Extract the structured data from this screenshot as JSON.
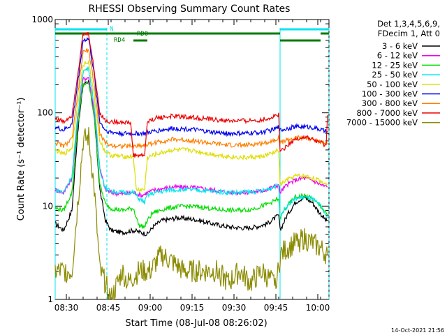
{
  "chart_data": {
    "type": "line",
    "title": "RHESSI Observing Summary Count Rates",
    "xlabel": "Start Time (08-Jul-08 08:26:02)",
    "ylabel": "Count Rate (s⁻¹ detector⁻¹)",
    "yscale": "log",
    "ylim": [
      1,
      1000
    ],
    "xlim_minutes": [
      0,
      98
    ],
    "x_ticks": [
      {
        "minute": 4,
        "label": "08:30"
      },
      {
        "minute": 19,
        "label": "08:45"
      },
      {
        "minute": 34,
        "label": "09:00"
      },
      {
        "minute": 49,
        "label": "09:15"
      },
      {
        "minute": 64,
        "label": "09:30"
      },
      {
        "minute": 79,
        "label": "09:45"
      },
      {
        "minute": 94,
        "label": "10:00"
      }
    ],
    "y_ticks": [
      {
        "value": 1,
        "label": "1"
      },
      {
        "value": 10,
        "label": "10"
      },
      {
        "value": 100,
        "label": "100"
      },
      {
        "value": 1000,
        "label": "1000"
      }
    ],
    "legend_header": [
      "Det 1,3,4,5,6,9,",
      "FDecim 1, Att 0"
    ],
    "legend_position": "right",
    "timestamp": "14-Oct-2021 21:56",
    "flags": [
      {
        "label": "N",
        "color": "#00e5ee",
        "segments": [
          [
            0,
            18.5
          ],
          [
            80.5,
            98
          ]
        ]
      },
      {
        "label": "RD0",
        "color": "#007a00",
        "segments": [
          [
            0,
            80.5
          ],
          [
            95,
            98
          ]
        ]
      },
      {
        "label": "RD4",
        "color": "#007a00",
        "segments": [
          [
            28,
            33
          ],
          [
            80.5,
            95
          ]
        ]
      }
    ],
    "night_boundaries": [
      0,
      18.5,
      80.5,
      98
    ],
    "series": [
      {
        "name": "3 - 6 keV",
        "color": "#000000",
        "points": [
          [
            0,
            6.5
          ],
          [
            3,
            5.5
          ],
          [
            6,
            9
          ],
          [
            8,
            60
          ],
          [
            10,
            200
          ],
          [
            12,
            220
          ],
          [
            14,
            90
          ],
          [
            16,
            15
          ],
          [
            18,
            7
          ],
          [
            20,
            5.5
          ],
          [
            24,
            5.2
          ],
          [
            28,
            5.5
          ],
          [
            31,
            5.2
          ],
          [
            33,
            5
          ],
          [
            35,
            6
          ],
          [
            38,
            7
          ],
          [
            44,
            7.5
          ],
          [
            50,
            7.2
          ],
          [
            56,
            6.5
          ],
          [
            62,
            6
          ],
          [
            68,
            5.8
          ],
          [
            72,
            6
          ],
          [
            76,
            6.5
          ],
          [
            80,
            8
          ],
          [
            80.5,
            5.5
          ],
          [
            83,
            8
          ],
          [
            86,
            11
          ],
          [
            89,
            12.5
          ],
          [
            92,
            11
          ],
          [
            94,
            9
          ],
          [
            97,
            7
          ],
          [
            97.5,
            7
          ]
        ]
      },
      {
        "name": "6 - 12 keV",
        "color": "#ee00ee",
        "points": [
          [
            0,
            15
          ],
          [
            3,
            14
          ],
          [
            6,
            20
          ],
          [
            8,
            80
          ],
          [
            10,
            230
          ],
          [
            12,
            240
          ],
          [
            14,
            100
          ],
          [
            16,
            25
          ],
          [
            18,
            15
          ],
          [
            20,
            14
          ],
          [
            24,
            13.5
          ],
          [
            28,
            14
          ],
          [
            31,
            13
          ],
          [
            33,
            14
          ],
          [
            36,
            15
          ],
          [
            42,
            16
          ],
          [
            48,
            16
          ],
          [
            56,
            15
          ],
          [
            62,
            14
          ],
          [
            68,
            14
          ],
          [
            74,
            14.5
          ],
          [
            78,
            16
          ],
          [
            80,
            17
          ],
          [
            80.5,
            14
          ],
          [
            83,
            17
          ],
          [
            86,
            19
          ],
          [
            89,
            20
          ],
          [
            92,
            19
          ],
          [
            95,
            17
          ],
          [
            97.5,
            16
          ]
        ]
      },
      {
        "name": "12 - 25 keV",
        "color": "#00dd00",
        "points": [
          [
            0,
            9.5
          ],
          [
            3,
            9
          ],
          [
            6,
            14
          ],
          [
            8,
            70
          ],
          [
            10,
            200
          ],
          [
            12,
            210
          ],
          [
            14,
            90
          ],
          [
            16,
            17
          ],
          [
            18,
            10.5
          ],
          [
            20,
            9.5
          ],
          [
            24,
            9
          ],
          [
            28,
            9.5
          ],
          [
            30,
            6.2
          ],
          [
            32,
            6
          ],
          [
            33,
            7
          ],
          [
            35,
            8.5
          ],
          [
            40,
            9.5
          ],
          [
            46,
            10
          ],
          [
            52,
            9.8
          ],
          [
            58,
            9.2
          ],
          [
            64,
            9
          ],
          [
            70,
            9.2
          ],
          [
            76,
            10.5
          ],
          [
            80,
            12
          ],
          [
            80.5,
            7.5
          ],
          [
            83,
            10
          ],
          [
            86,
            12.5
          ],
          [
            89,
            13
          ],
          [
            92,
            12
          ],
          [
            95,
            10
          ],
          [
            97.5,
            8
          ]
        ]
      },
      {
        "name": "25 - 50 keV",
        "color": "#00e5ee",
        "points": [
          [
            0,
            15
          ],
          [
            3,
            14
          ],
          [
            6,
            21
          ],
          [
            8,
            90
          ],
          [
            10,
            280
          ],
          [
            12,
            300
          ],
          [
            14,
            120
          ],
          [
            16,
            25
          ],
          [
            18,
            15.5
          ],
          [
            20,
            14.5
          ],
          [
            24,
            14
          ],
          [
            28,
            14
          ],
          [
            30,
            12
          ],
          [
            32,
            11
          ],
          [
            33,
            13
          ],
          [
            36,
            14
          ],
          [
            42,
            15
          ],
          [
            48,
            15
          ],
          [
            56,
            14.5
          ],
          [
            62,
            14
          ],
          [
            68,
            14
          ],
          [
            74,
            14.5
          ],
          [
            78,
            16
          ],
          [
            80,
            17
          ],
          [
            80.5,
            8
          ],
          [
            83,
            10
          ],
          [
            86,
            12
          ],
          [
            89,
            12.5
          ],
          [
            92,
            12
          ],
          [
            95,
            10
          ],
          [
            97.5,
            7.5
          ]
        ]
      },
      {
        "name": "50 - 100 keV",
        "color": "#dddd00",
        "points": [
          [
            0,
            40
          ],
          [
            3,
            36
          ],
          [
            6,
            42
          ],
          [
            8,
            120
          ],
          [
            10,
            330
          ],
          [
            12,
            350
          ],
          [
            14,
            150
          ],
          [
            16,
            50
          ],
          [
            18,
            38
          ],
          [
            20,
            35
          ],
          [
            24,
            34
          ],
          [
            28,
            34
          ],
          [
            29,
            15
          ],
          [
            32,
            15
          ],
          [
            33,
            33
          ],
          [
            36,
            36
          ],
          [
            42,
            40
          ],
          [
            48,
            40
          ],
          [
            56,
            36
          ],
          [
            62,
            34
          ],
          [
            68,
            33
          ],
          [
            74,
            34
          ],
          [
            78,
            37
          ],
          [
            80,
            40
          ],
          [
            80.5,
            17
          ],
          [
            83,
            19
          ],
          [
            86,
            21
          ],
          [
            89,
            21
          ],
          [
            92,
            20
          ],
          [
            95,
            18.5
          ],
          [
            97.5,
            17
          ]
        ]
      },
      {
        "name": "100 - 300 keV",
        "color": "#0000ee",
        "points": [
          [
            0,
            70
          ],
          [
            3,
            65
          ],
          [
            6,
            75
          ],
          [
            8,
            200
          ],
          [
            10,
            600
          ],
          [
            12,
            620
          ],
          [
            14,
            250
          ],
          [
            16,
            80
          ],
          [
            18,
            65
          ],
          [
            20,
            62
          ],
          [
            24,
            60
          ],
          [
            28,
            60
          ],
          [
            32,
            60
          ],
          [
            36,
            64
          ],
          [
            42,
            68
          ],
          [
            48,
            67
          ],
          [
            56,
            62
          ],
          [
            62,
            60
          ],
          [
            68,
            60
          ],
          [
            74,
            62
          ],
          [
            78,
            66
          ],
          [
            80,
            70
          ],
          [
            80.5,
            65
          ],
          [
            83,
            68
          ],
          [
            86,
            71
          ],
          [
            89,
            71
          ],
          [
            92,
            70
          ],
          [
            95,
            66
          ],
          [
            97.5,
            62
          ]
        ]
      },
      {
        "name": "300 - 800 keV",
        "color": "#ff7f00",
        "points": [
          [
            0,
            48
          ],
          [
            3,
            44
          ],
          [
            6,
            52
          ],
          [
            8,
            150
          ],
          [
            10,
            450
          ],
          [
            12,
            470
          ],
          [
            14,
            200
          ],
          [
            16,
            60
          ],
          [
            18,
            47
          ],
          [
            20,
            45
          ],
          [
            24,
            44
          ],
          [
            28,
            44
          ],
          [
            32,
            45
          ],
          [
            36,
            48
          ],
          [
            42,
            52
          ],
          [
            48,
            51
          ],
          [
            56,
            47
          ],
          [
            62,
            45
          ],
          [
            68,
            45
          ],
          [
            74,
            47
          ],
          [
            78,
            50
          ],
          [
            80,
            55
          ],
          [
            80.5,
            48
          ],
          [
            83,
            51
          ],
          [
            86,
            54
          ],
          [
            89,
            54
          ],
          [
            92,
            52
          ],
          [
            95,
            49
          ],
          [
            97.5,
            46
          ]
        ]
      },
      {
        "name": "800 - 7000 keV",
        "color": "#ee0000",
        "points": [
          [
            0,
            88
          ],
          [
            3,
            80
          ],
          [
            6,
            95
          ],
          [
            8,
            250
          ],
          [
            10,
            690
          ],
          [
            12,
            700
          ],
          [
            14,
            280
          ],
          [
            16,
            100
          ],
          [
            18,
            82
          ],
          [
            20,
            80
          ],
          [
            24,
            80
          ],
          [
            27,
            78
          ],
          [
            28,
            35
          ],
          [
            32,
            35
          ],
          [
            33,
            80
          ],
          [
            36,
            88
          ],
          [
            42,
            92
          ],
          [
            48,
            90
          ],
          [
            56,
            85
          ],
          [
            62,
            82
          ],
          [
            68,
            82
          ],
          [
            74,
            84
          ],
          [
            78,
            90
          ],
          [
            80,
            97
          ],
          [
            80.5,
            38
          ],
          [
            83,
            45
          ],
          [
            86,
            52
          ],
          [
            89,
            55
          ],
          [
            92,
            52
          ],
          [
            95,
            48
          ],
          [
            97,
            44
          ],
          [
            97.5,
            95
          ]
        ]
      },
      {
        "name": "7000 - 15000 keV",
        "color": "#8b8b00",
        "points": [
          [
            0,
            2
          ],
          [
            4,
            2
          ],
          [
            6,
            2
          ],
          [
            8,
            10
          ],
          [
            10,
            50
          ],
          [
            12,
            55
          ],
          [
            14,
            15
          ],
          [
            16,
            2
          ],
          [
            18,
            1.5
          ],
          [
            20,
            1
          ],
          [
            24,
            2
          ],
          [
            26,
            1.5
          ],
          [
            30,
            2
          ],
          [
            34,
            2
          ],
          [
            38,
            3
          ],
          [
            42,
            2.5
          ],
          [
            46,
            2
          ],
          [
            50,
            2
          ],
          [
            54,
            2
          ],
          [
            58,
            2
          ],
          [
            62,
            1.5
          ],
          [
            66,
            2
          ],
          [
            70,
            1.5
          ],
          [
            74,
            2
          ],
          [
            78,
            1.5
          ],
          [
            80,
            2
          ],
          [
            80.5,
            3
          ],
          [
            83,
            3.5
          ],
          [
            86,
            4
          ],
          [
            89,
            4.5
          ],
          [
            92,
            4
          ],
          [
            95,
            3.5
          ],
          [
            97.5,
            3
          ]
        ]
      }
    ]
  }
}
